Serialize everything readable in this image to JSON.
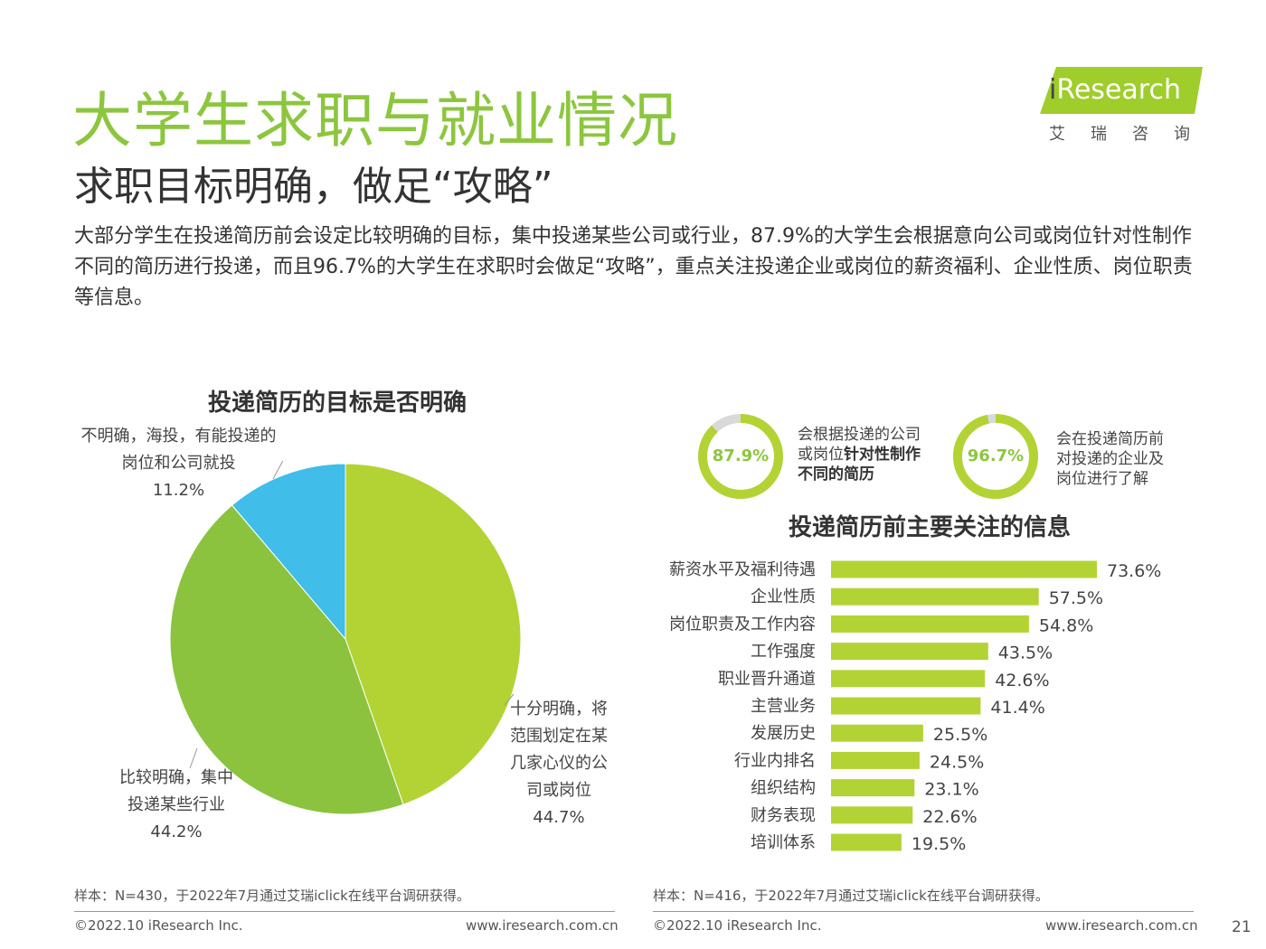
{
  "title": "大学生求职与就业情况",
  "subtitle": "求职目标明确，做足“攻略”",
  "intro": "大部分学生在投递简历前会设定比较明确的目标，集中投递某些公司或行业，87.9%的大学生会根据意向公司或岗位针对性制作不同的简历进行投递，而且96.7%的大学生在求职时会做足“攻略”，重点关注投递企业或岗位的薪资福利、企业性质、岗位职责等信息。",
  "logo": {
    "wordmark_i": "i",
    "wordmark_rest": "Research",
    "cn": "艾瑞咨询",
    "brand_color": "#9fcd2c"
  },
  "chart_data": [
    {
      "type": "pie",
      "title": "投递简历的目标是否明确",
      "slices": [
        {
          "label_lines": [
            "十分明确，将",
            "范围划定在某",
            "几家心仪的公",
            "司或岗位"
          ],
          "value": 44.7,
          "value_label": "44.7%",
          "color": "#b3d335"
        },
        {
          "label_lines": [
            "比较明确，集中",
            "投递某些行业"
          ],
          "value": 44.2,
          "value_label": "44.2%",
          "color": "#8bc33f"
        },
        {
          "label_lines": [
            "不明确，海投，有能投递的",
            "岗位和公司就投"
          ],
          "value": 11.2,
          "value_label": "11.2%",
          "color": "#40bde8"
        }
      ]
    },
    {
      "type": "bar",
      "orientation": "horizontal",
      "title": "投递简历前主要关注的信息",
      "categories": [
        "薪资水平及福利待遇",
        "企业性质",
        "岗位职责及工作内容",
        "工作强度",
        "职业晋升通道",
        "主营业务",
        "发展历史",
        "行业内排名",
        "组织结构",
        "财务表现",
        "培训体系"
      ],
      "values": [
        73.6,
        57.5,
        54.8,
        43.5,
        42.6,
        41.4,
        25.5,
        24.5,
        23.1,
        22.6,
        19.5
      ],
      "value_labels": [
        "73.6%",
        "57.5%",
        "54.8%",
        "43.5%",
        "42.6%",
        "41.4%",
        "25.5%",
        "24.5%",
        "23.1%",
        "22.6%",
        "19.5%"
      ],
      "color": "#b3d335"
    }
  ],
  "highlights": [
    {
      "value": 87.9,
      "value_label": "87.9%",
      "text_pre": "会根据投递的公司或岗位",
      "text_bold": "针对性制作不同的简历",
      "color": "#b3d335",
      "track": "#d9d9d9"
    },
    {
      "value": 96.7,
      "value_label": "96.7%",
      "text_pre": "会在投递简历前对投递的企业及岗位进行了解",
      "text_bold": "",
      "color": "#b3d335",
      "track": "#d9d9d9"
    }
  ],
  "footer": {
    "source_left": "样本：N=430，于2022年7月通过艾瑞iclick在线平台调研获得。",
    "source_right": "样本：N=416，于2022年7月通过艾瑞iclick在线平台调研获得。",
    "copyright": "©2022.10 iResearch Inc.",
    "website": "www.iresearch.com.cn",
    "page_number": "21"
  }
}
